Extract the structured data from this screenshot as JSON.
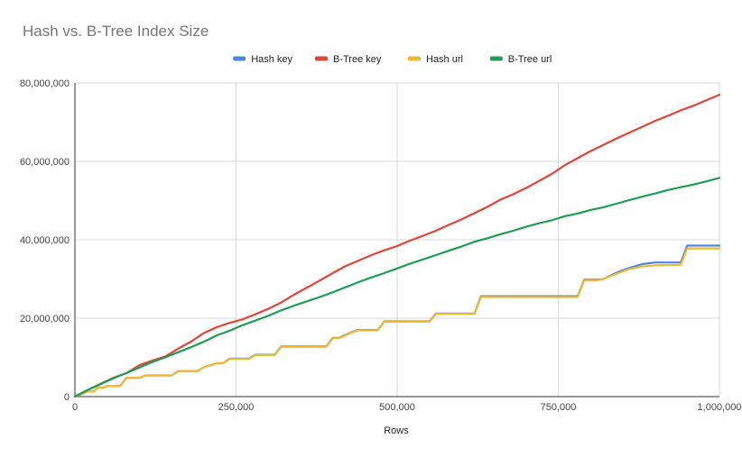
{
  "chart_data": {
    "type": "line",
    "title": "Hash vs. B-Tree Index Size",
    "xlabel": "Rows",
    "ylabel": "",
    "xlim": [
      0,
      1000000
    ],
    "ylim": [
      0,
      80000000
    ],
    "x_ticks": [
      "0",
      "250,000",
      "500,000",
      "750,000",
      "1,000,000"
    ],
    "x_tick_values": [
      0,
      250000,
      500000,
      750000,
      1000000
    ],
    "y_ticks": [
      "0",
      "20,000,000",
      "40,000,000",
      "60,000,000",
      "80,000,000"
    ],
    "y_tick_values": [
      0,
      20000000,
      40000000,
      60000000,
      80000000
    ],
    "grid": true,
    "legend_position": "top",
    "series": [
      {
        "name": "Hash key",
        "color": "#4a86e8",
        "points": [
          [
            0,
            0
          ],
          [
            10000,
            600000
          ],
          [
            20000,
            1300000
          ],
          [
            30000,
            1300000
          ],
          [
            35000,
            2300000
          ],
          [
            45000,
            2300000
          ],
          [
            50000,
            2700000
          ],
          [
            70000,
            2700000
          ],
          [
            80000,
            4800000
          ],
          [
            100000,
            4800000
          ],
          [
            110000,
            5400000
          ],
          [
            150000,
            5400000
          ],
          [
            160000,
            6500000
          ],
          [
            190000,
            6500000
          ],
          [
            200000,
            7500000
          ],
          [
            220000,
            8500000
          ],
          [
            230000,
            8500000
          ],
          [
            240000,
            9700000
          ],
          [
            270000,
            9700000
          ],
          [
            280000,
            10700000
          ],
          [
            310000,
            10700000
          ],
          [
            320000,
            12800000
          ],
          [
            390000,
            12800000
          ],
          [
            400000,
            15000000
          ],
          [
            410000,
            15000000
          ],
          [
            430000,
            16500000
          ],
          [
            440000,
            17000000
          ],
          [
            470000,
            17000000
          ],
          [
            480000,
            19200000
          ],
          [
            550000,
            19200000
          ],
          [
            560000,
            21200000
          ],
          [
            620000,
            21200000
          ],
          [
            630000,
            25600000
          ],
          [
            780000,
            25600000
          ],
          [
            790000,
            29800000
          ],
          [
            810000,
            29800000
          ],
          [
            820000,
            30000000
          ],
          [
            840000,
            31600000
          ],
          [
            860000,
            32800000
          ],
          [
            880000,
            33800000
          ],
          [
            900000,
            34200000
          ],
          [
            940000,
            34200000
          ],
          [
            950000,
            38500000
          ],
          [
            1000000,
            38500000
          ]
        ]
      },
      {
        "name": "B-Tree key",
        "color": "#e0453a",
        "points": [
          [
            0,
            0
          ],
          [
            20000,
            1700000
          ],
          [
            40000,
            3300000
          ],
          [
            60000,
            4800000
          ],
          [
            80000,
            6000000
          ],
          [
            100000,
            8000000
          ],
          [
            120000,
            9200000
          ],
          [
            140000,
            10200000
          ],
          [
            160000,
            12200000
          ],
          [
            180000,
            14000000
          ],
          [
            200000,
            16200000
          ],
          [
            220000,
            17700000
          ],
          [
            240000,
            18800000
          ],
          [
            260000,
            19700000
          ],
          [
            280000,
            21000000
          ],
          [
            300000,
            22400000
          ],
          [
            320000,
            24000000
          ],
          [
            340000,
            26000000
          ],
          [
            360000,
            27800000
          ],
          [
            380000,
            29600000
          ],
          [
            400000,
            31500000
          ],
          [
            420000,
            33300000
          ],
          [
            440000,
            34700000
          ],
          [
            460000,
            36100000
          ],
          [
            480000,
            37300000
          ],
          [
            500000,
            38400000
          ],
          [
            520000,
            39800000
          ],
          [
            540000,
            41000000
          ],
          [
            560000,
            42300000
          ],
          [
            580000,
            43800000
          ],
          [
            600000,
            45200000
          ],
          [
            620000,
            46800000
          ],
          [
            640000,
            48400000
          ],
          [
            660000,
            50200000
          ],
          [
            680000,
            51600000
          ],
          [
            700000,
            53200000
          ],
          [
            720000,
            55000000
          ],
          [
            740000,
            56800000
          ],
          [
            760000,
            59000000
          ],
          [
            780000,
            60800000
          ],
          [
            800000,
            62600000
          ],
          [
            820000,
            64200000
          ],
          [
            840000,
            65800000
          ],
          [
            860000,
            67300000
          ],
          [
            880000,
            68800000
          ],
          [
            900000,
            70300000
          ],
          [
            920000,
            71600000
          ],
          [
            940000,
            73000000
          ],
          [
            960000,
            74200000
          ],
          [
            980000,
            75600000
          ],
          [
            1000000,
            77000000
          ]
        ]
      },
      {
        "name": "Hash url",
        "color": "#f1b92c",
        "points": [
          [
            0,
            0
          ],
          [
            10000,
            600000
          ],
          [
            20000,
            1300000
          ],
          [
            30000,
            1300000
          ],
          [
            35000,
            2300000
          ],
          [
            45000,
            2300000
          ],
          [
            50000,
            2700000
          ],
          [
            70000,
            2700000
          ],
          [
            80000,
            4800000
          ],
          [
            100000,
            4800000
          ],
          [
            110000,
            5400000
          ],
          [
            150000,
            5400000
          ],
          [
            160000,
            6500000
          ],
          [
            190000,
            6500000
          ],
          [
            200000,
            7500000
          ],
          [
            220000,
            8500000
          ],
          [
            230000,
            8500000
          ],
          [
            240000,
            9600000
          ],
          [
            270000,
            9600000
          ],
          [
            280000,
            10600000
          ],
          [
            310000,
            10600000
          ],
          [
            320000,
            12700000
          ],
          [
            390000,
            12700000
          ],
          [
            400000,
            14900000
          ],
          [
            410000,
            14900000
          ],
          [
            430000,
            16400000
          ],
          [
            440000,
            16900000
          ],
          [
            470000,
            16900000
          ],
          [
            480000,
            19100000
          ],
          [
            550000,
            19100000
          ],
          [
            560000,
            21100000
          ],
          [
            620000,
            21100000
          ],
          [
            630000,
            25400000
          ],
          [
            780000,
            25400000
          ],
          [
            790000,
            29600000
          ],
          [
            810000,
            29600000
          ],
          [
            820000,
            30000000
          ],
          [
            840000,
            31300000
          ],
          [
            860000,
            32500000
          ],
          [
            880000,
            33200000
          ],
          [
            900000,
            33500000
          ],
          [
            940000,
            33600000
          ],
          [
            950000,
            37800000
          ],
          [
            1000000,
            37800000
          ]
        ]
      },
      {
        "name": "B-Tree url",
        "color": "#1f9d55",
        "points": [
          [
            0,
            0
          ],
          [
            20000,
            1700000
          ],
          [
            40000,
            3200000
          ],
          [
            60000,
            4700000
          ],
          [
            80000,
            6000000
          ],
          [
            100000,
            7400000
          ],
          [
            120000,
            8800000
          ],
          [
            140000,
            10000000
          ],
          [
            160000,
            11300000
          ],
          [
            180000,
            12600000
          ],
          [
            200000,
            14000000
          ],
          [
            220000,
            15600000
          ],
          [
            240000,
            16800000
          ],
          [
            260000,
            18200000
          ],
          [
            280000,
            19400000
          ],
          [
            300000,
            20600000
          ],
          [
            320000,
            22000000
          ],
          [
            340000,
            23200000
          ],
          [
            360000,
            24300000
          ],
          [
            380000,
            25400000
          ],
          [
            400000,
            26600000
          ],
          [
            420000,
            27900000
          ],
          [
            440000,
            29200000
          ],
          [
            460000,
            30400000
          ],
          [
            480000,
            31500000
          ],
          [
            500000,
            32700000
          ],
          [
            520000,
            33900000
          ],
          [
            540000,
            35000000
          ],
          [
            560000,
            36100000
          ],
          [
            580000,
            37200000
          ],
          [
            600000,
            38300000
          ],
          [
            620000,
            39500000
          ],
          [
            640000,
            40400000
          ],
          [
            660000,
            41400000
          ],
          [
            680000,
            42300000
          ],
          [
            700000,
            43300000
          ],
          [
            720000,
            44200000
          ],
          [
            740000,
            45000000
          ],
          [
            760000,
            46000000
          ],
          [
            780000,
            46700000
          ],
          [
            800000,
            47600000
          ],
          [
            820000,
            48300000
          ],
          [
            840000,
            49200000
          ],
          [
            860000,
            50100000
          ],
          [
            880000,
            51000000
          ],
          [
            900000,
            51800000
          ],
          [
            920000,
            52700000
          ],
          [
            940000,
            53400000
          ],
          [
            960000,
            54100000
          ],
          [
            980000,
            54900000
          ],
          [
            1000000,
            55800000
          ]
        ]
      }
    ]
  }
}
